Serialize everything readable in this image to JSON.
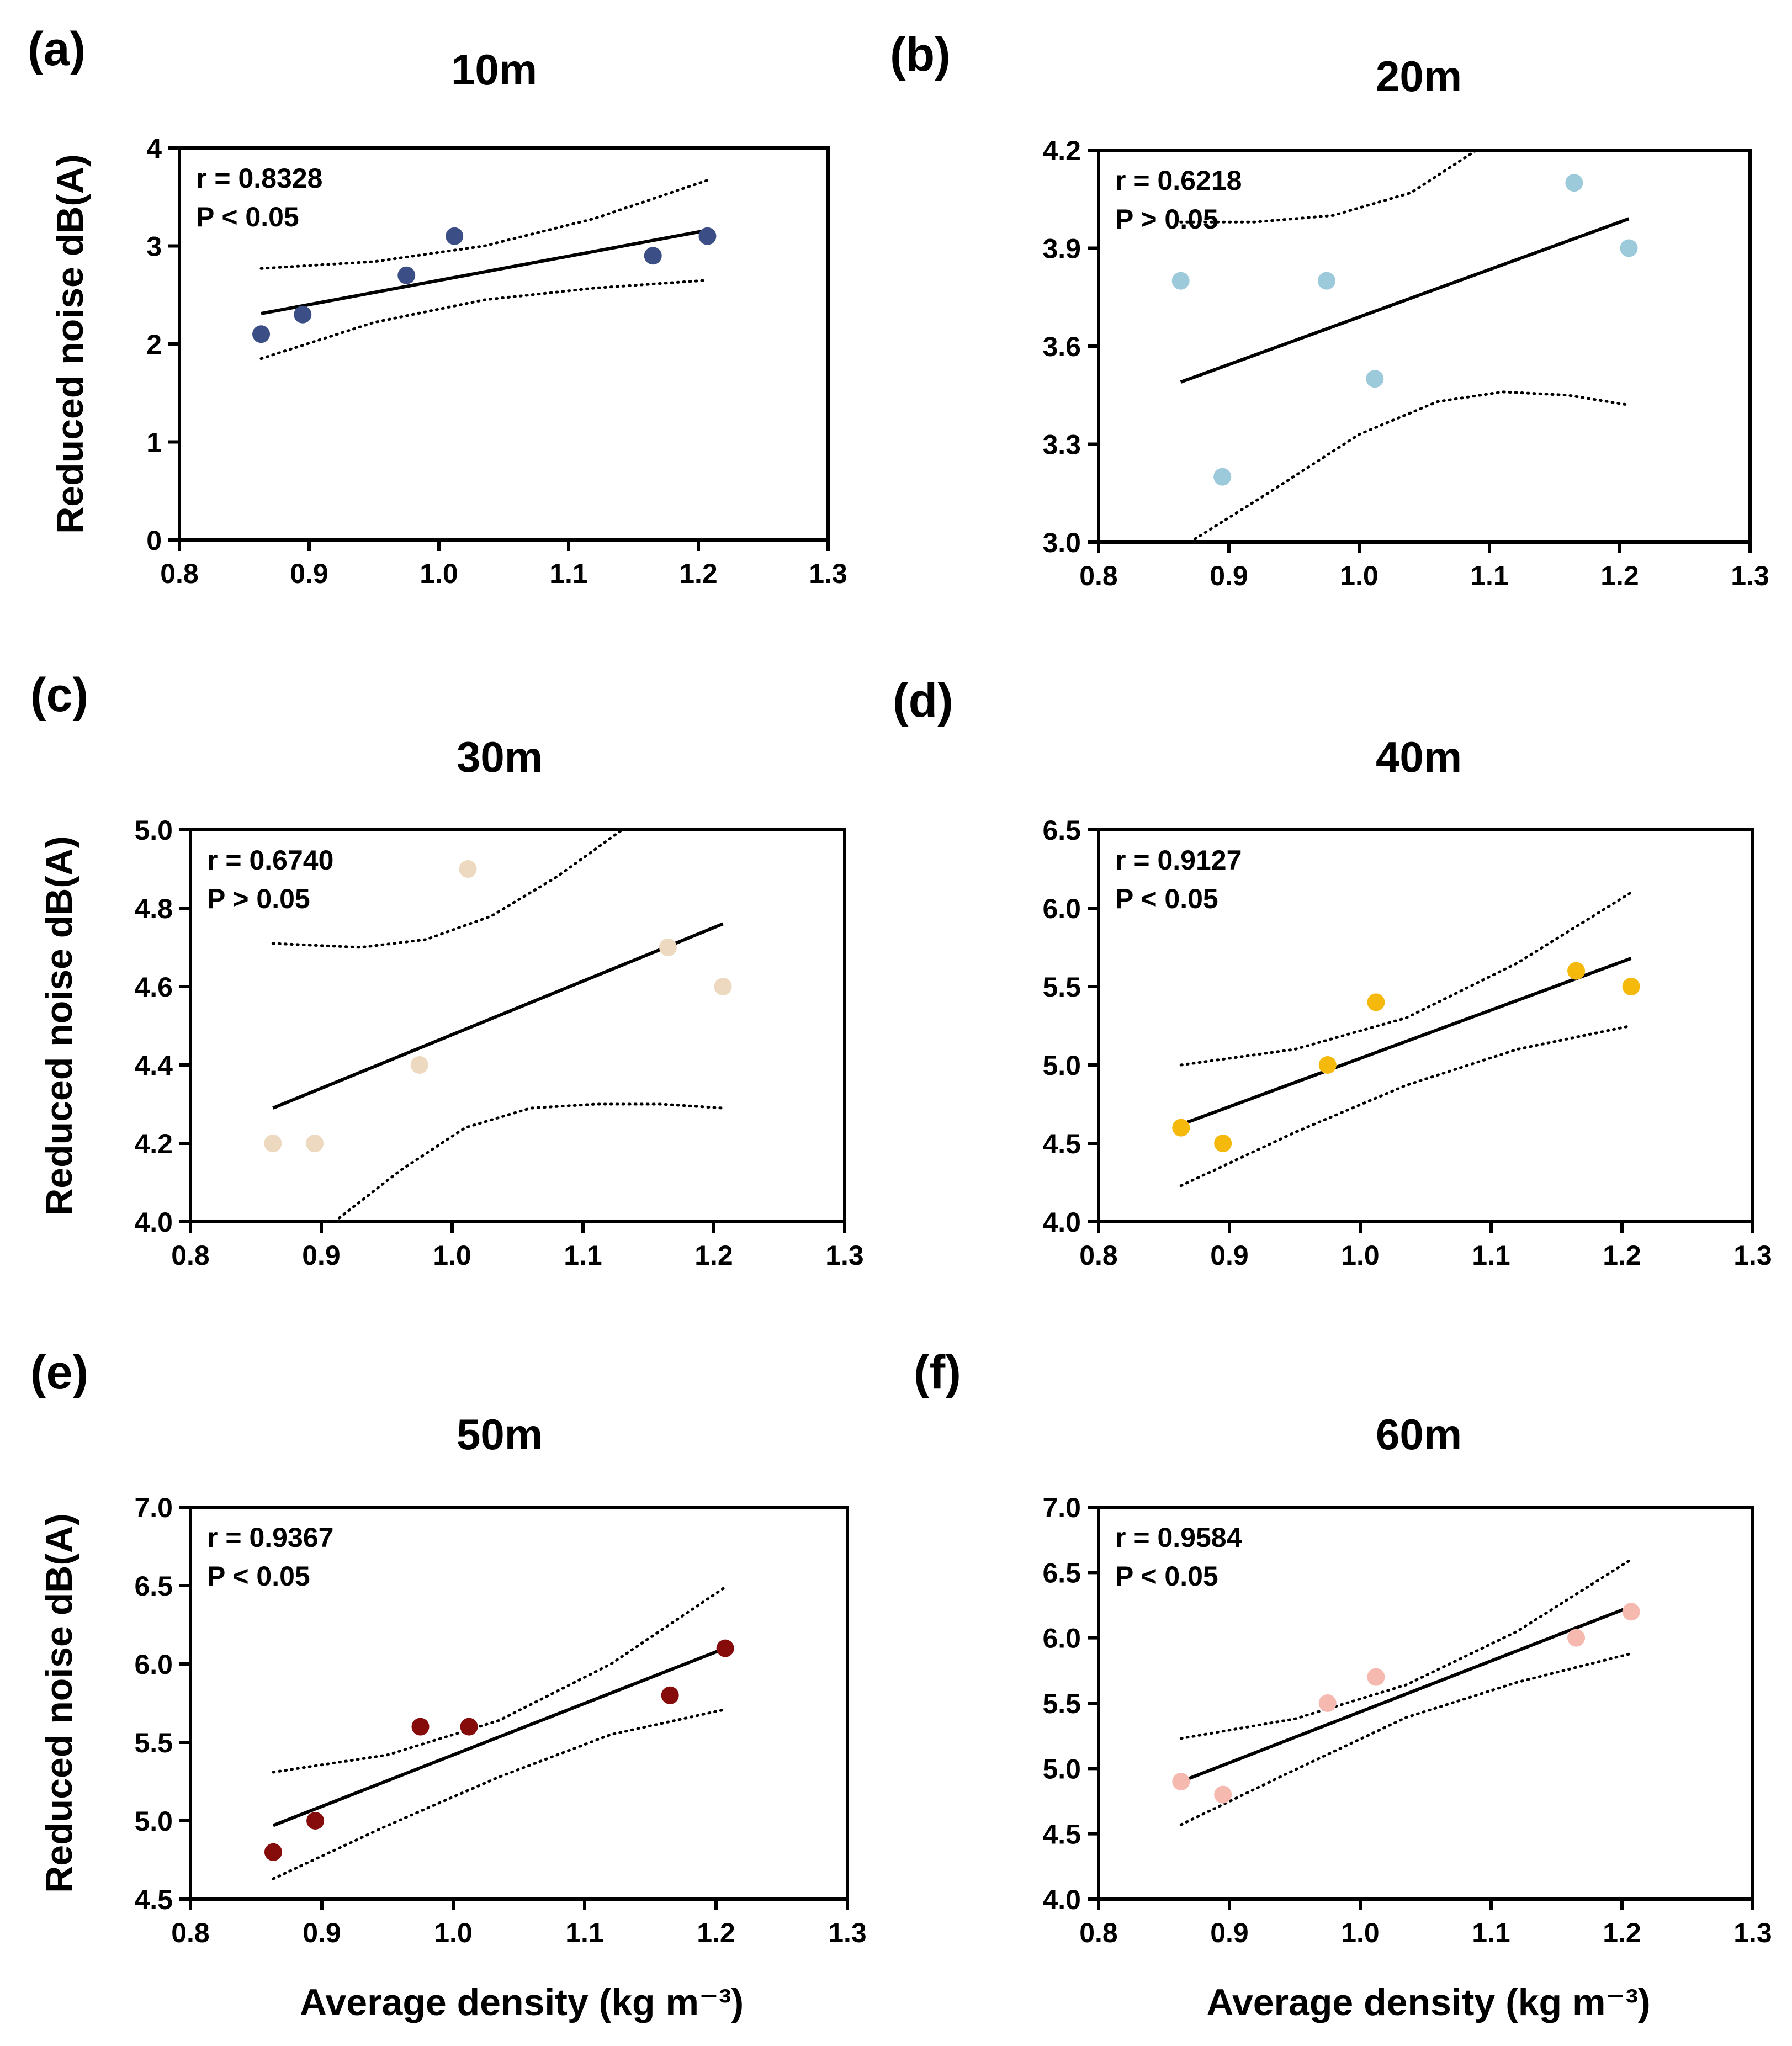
{
  "figure": {
    "ylabel": "Reduced noise dB(A)",
    "xlabel": "Average density (kg m⁻³)",
    "xlim": [
      0.8,
      1.3
    ],
    "x_ticks": [
      "0.8",
      "0.9",
      "1.0",
      "1.1",
      "1.2",
      "1.3"
    ]
  },
  "chart_data": [
    {
      "type": "scatter",
      "panel": "(a)",
      "title": "10m",
      "r_text": "r = 0.8328",
      "p_text": "P < 0.05",
      "color": "#3b4f86",
      "x": [
        0.863,
        0.895,
        0.975,
        1.012,
        1.165,
        1.207
      ],
      "y": [
        2.1,
        2.3,
        2.7,
        3.1,
        2.9,
        3.1
      ],
      "ylim": [
        0,
        4
      ],
      "y_ticks": [
        "0",
        "1",
        "2",
        "3",
        "4"
      ],
      "fit_line": {
        "x": [
          0.863,
          1.207
        ],
        "y": [
          2.31,
          3.16
        ]
      },
      "ci_upper": {
        "x": [
          0.863,
          0.95,
          1.035,
          1.12,
          1.207
        ],
        "y": [
          2.77,
          2.84,
          3.0,
          3.28,
          3.67
        ]
      },
      "ci_lower": {
        "x": [
          0.863,
          0.95,
          1.035,
          1.12,
          1.207
        ],
        "y": [
          1.85,
          2.22,
          2.45,
          2.57,
          2.65
        ]
      }
    },
    {
      "type": "scatter",
      "panel": "(b)",
      "title": "20m",
      "r_text": "r = 0.6218",
      "p_text": "P > 0.05",
      "color": "#9ccadb",
      "x": [
        0.863,
        0.895,
        0.975,
        1.012,
        1.165,
        1.207
      ],
      "y": [
        3.8,
        3.2,
        3.8,
        3.5,
        4.1,
        3.9
      ],
      "ylim": [
        3.0,
        4.2
      ],
      "y_ticks": [
        "3.0",
        "3.3",
        "3.6",
        "3.9",
        "4.2"
      ],
      "fit_line": {
        "x": [
          0.863,
          1.207
        ],
        "y": [
          3.49,
          3.99
        ]
      },
      "ci_upper": {
        "x": [
          0.863,
          0.92,
          0.98,
          1.04,
          1.09
        ],
        "y": [
          3.98,
          3.98,
          4.0,
          4.07,
          4.2
        ]
      },
      "ci_lower": {
        "x": [
          0.87,
          0.93,
          1.0,
          1.06,
          1.11,
          1.16,
          1.207
        ],
        "y": [
          3.0,
          3.15,
          3.33,
          3.43,
          3.46,
          3.45,
          3.42
        ]
      }
    },
    {
      "type": "scatter",
      "panel": "(c)",
      "title": "30m",
      "r_text": "r = 0.6740",
      "p_text": "P > 0.05",
      "color": "#edd9bf",
      "x": [
        0.863,
        0.895,
        0.975,
        1.012,
        1.165,
        1.207
      ],
      "y": [
        4.2,
        4.2,
        4.4,
        4.9,
        4.7,
        4.6
      ],
      "ylim": [
        4.0,
        5.0
      ],
      "y_ticks": [
        "4.0",
        "4.2",
        "4.4",
        "4.6",
        "4.8",
        "5.0"
      ],
      "fit_line": {
        "x": [
          0.863,
          1.207
        ],
        "y": [
          4.29,
          4.76
        ]
      },
      "ci_upper": {
        "x": [
          0.863,
          0.93,
          0.98,
          1.03,
          1.08,
          1.13
        ],
        "y": [
          4.71,
          4.7,
          4.72,
          4.78,
          4.88,
          5.0
        ]
      },
      "ci_lower": {
        "x": [
          0.91,
          0.96,
          1.01,
          1.06,
          1.11,
          1.16,
          1.207
        ],
        "y": [
          4.0,
          4.13,
          4.24,
          4.29,
          4.3,
          4.3,
          4.29
        ]
      }
    },
    {
      "type": "scatter",
      "panel": "(d)",
      "title": "40m",
      "r_text": "r = 0.9127",
      "p_text": "P < 0.05",
      "color": "#f5b90c",
      "x": [
        0.863,
        0.895,
        0.975,
        1.012,
        1.165,
        1.207
      ],
      "y": [
        4.6,
        4.5,
        5.0,
        5.4,
        5.6,
        5.5
      ],
      "ylim": [
        4.0,
        6.5
      ],
      "y_ticks": [
        "4.0",
        "4.5",
        "5.0",
        "5.5",
        "6.0",
        "6.5"
      ],
      "fit_line": {
        "x": [
          0.863,
          1.207
        ],
        "y": [
          4.62,
          5.68
        ]
      },
      "ci_upper": {
        "x": [
          0.863,
          0.95,
          1.035,
          1.12,
          1.207
        ],
        "y": [
          5.0,
          5.1,
          5.3,
          5.65,
          6.1
        ]
      },
      "ci_lower": {
        "x": [
          0.863,
          0.95,
          1.035,
          1.12,
          1.207
        ],
        "y": [
          4.23,
          4.57,
          4.87,
          5.1,
          5.25
        ]
      }
    },
    {
      "type": "scatter",
      "panel": "(e)",
      "title": "50m",
      "r_text": "r = 0.9367",
      "p_text": "P < 0.05",
      "color": "#860c0c",
      "x": [
        0.863,
        0.895,
        0.975,
        1.012,
        1.165,
        1.207
      ],
      "y": [
        4.8,
        5.0,
        5.6,
        5.6,
        5.8,
        6.1
      ],
      "ylim": [
        4.5,
        7.0
      ],
      "y_ticks": [
        "4.5",
        "5.0",
        "5.5",
        "6.0",
        "6.5",
        "7.0"
      ],
      "fit_line": {
        "x": [
          0.863,
          1.207
        ],
        "y": [
          4.97,
          6.1
        ]
      },
      "ci_upper": {
        "x": [
          0.863,
          0.95,
          1.035,
          1.12,
          1.207
        ],
        "y": [
          5.31,
          5.42,
          5.64,
          6.0,
          6.49
        ]
      },
      "ci_lower": {
        "x": [
          0.863,
          0.95,
          1.035,
          1.12,
          1.207
        ],
        "y": [
          4.63,
          4.97,
          5.28,
          5.55,
          5.71
        ]
      }
    },
    {
      "type": "scatter",
      "panel": "(f)",
      "title": "60m",
      "r_text": "r = 0.9584",
      "p_text": "P < 0.05",
      "color": "#f6b9b0",
      "x": [
        0.863,
        0.895,
        0.975,
        1.012,
        1.165,
        1.207
      ],
      "y": [
        4.9,
        4.8,
        5.5,
        5.7,
        6.0,
        6.2
      ],
      "ylim": [
        4.0,
        7.0
      ],
      "y_ticks": [
        "4.0",
        "4.5",
        "5.0",
        "5.5",
        "6.0",
        "6.5",
        "7.0"
      ],
      "fit_line": {
        "x": [
          0.863,
          1.207
        ],
        "y": [
          4.9,
          6.24
        ]
      },
      "ci_upper": {
        "x": [
          0.863,
          0.95,
          1.035,
          1.12,
          1.207
        ],
        "y": [
          5.23,
          5.38,
          5.64,
          6.05,
          6.6
        ]
      },
      "ci_lower": {
        "x": [
          0.863,
          0.95,
          1.035,
          1.12,
          1.207
        ],
        "y": [
          4.57,
          4.99,
          5.39,
          5.66,
          5.88
        ]
      }
    }
  ]
}
